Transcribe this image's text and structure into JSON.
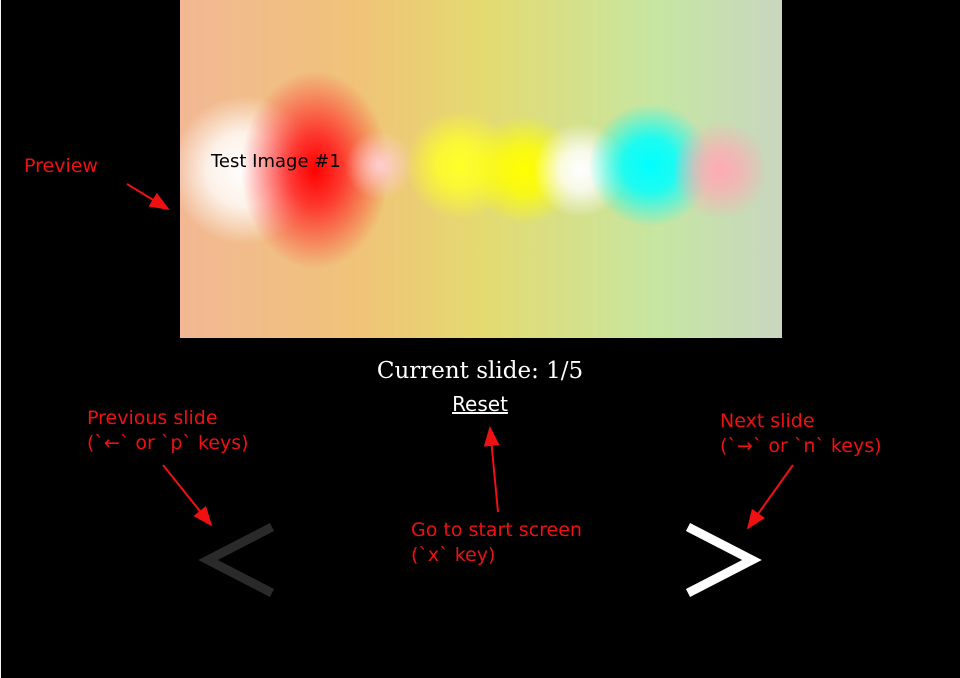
{
  "slideshow": {
    "preview_caption": "Test Image #1",
    "current_slide_text": "Current slide: 1/5",
    "reset_label": "Reset",
    "prev_glyph": "<",
    "next_glyph": ">"
  },
  "annotations": {
    "preview": "Preview",
    "previous_line1": "Previous slide",
    "previous_line2": "(`←` or `p` keys)",
    "next_line1": "Next slide",
    "next_line2": "(`→` or `n` keys)",
    "reset_line1": "Go to start screen",
    "reset_line2": "(`x` key)"
  },
  "colors": {
    "background": "#000000",
    "annotation": "#ee1111",
    "prev_arrow_disabled": "#2a2a2a",
    "next_arrow": "#ffffff",
    "text": "#ffffff"
  },
  "icons": {
    "prev": "chevron-left-icon",
    "next": "chevron-right-icon"
  }
}
